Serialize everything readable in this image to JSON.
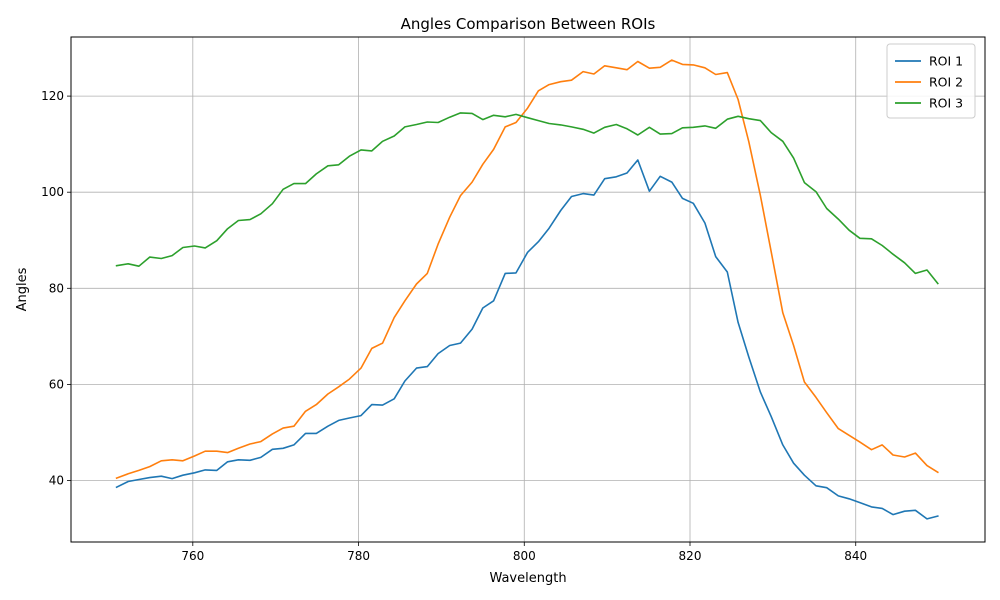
{
  "chart_data": {
    "type": "line",
    "title": "Angles Comparison Between ROIs",
    "xlabel": "Wavelength",
    "ylabel": "Angles",
    "xlim": [
      745.3,
      855.6
    ],
    "ylim": [
      27.2,
      132.3
    ],
    "xticks": [
      760,
      780,
      800,
      820,
      840
    ],
    "yticks": [
      40,
      60,
      80,
      100,
      120
    ],
    "grid": true,
    "legend": "top-right",
    "x": [
      750.8,
      752.2,
      753.5,
      754.8,
      756.2,
      757.5,
      758.8,
      760.2,
      761.5,
      762.9,
      764.2,
      765.5,
      766.9,
      768.2,
      769.6,
      770.9,
      772.2,
      773.6,
      774.9,
      776.3,
      777.6,
      778.9,
      780.3,
      781.6,
      782.9,
      784.3,
      785.6,
      787.0,
      788.3,
      789.6,
      791.0,
      792.3,
      793.7,
      795.0,
      796.3,
      797.7,
      799.0,
      800.4,
      801.7,
      803.0,
      804.4,
      805.7,
      807.1,
      808.4,
      809.7,
      811.1,
      812.4,
      813.7,
      815.1,
      816.4,
      817.8,
      819.1,
      820.4,
      821.8,
      823.1,
      824.5,
      825.8,
      827.1,
      828.5,
      829.8,
      831.2,
      832.5,
      833.8,
      835.2,
      836.5,
      837.9,
      839.2,
      840.5,
      841.9,
      843.2,
      844.5,
      845.9,
      847.2,
      848.6,
      849.9
    ],
    "series": [
      {
        "name": "ROI 1",
        "color": "#1f77b4",
        "values": [
          38.6,
          39.8,
          40.2,
          40.6,
          40.9,
          40.4,
          41.1,
          41.6,
          42.2,
          42.1,
          43.9,
          44.3,
          44.2,
          44.8,
          46.5,
          46.7,
          47.4,
          49.8,
          49.8,
          51.3,
          52.5,
          53.0,
          53.5,
          55.8,
          55.7,
          57.0,
          60.7,
          63.4,
          63.7,
          66.4,
          68.1,
          68.6,
          71.5,
          75.9,
          77.4,
          83.1,
          83.2,
          87.5,
          89.7,
          92.5,
          96.2,
          99.1,
          99.7,
          99.4,
          102.8,
          103.2,
          104.0,
          106.7,
          100.2,
          103.3,
          102.1,
          98.7,
          97.7,
          93.6,
          86.6,
          83.4,
          72.9,
          65.7,
          58.4,
          53.3,
          47.4,
          43.6,
          41.1,
          38.9,
          38.5,
          36.8,
          36.2,
          35.4,
          34.5,
          34.2,
          32.9,
          33.6,
          33.8,
          32.0,
          32.6
        ]
      },
      {
        "name": "ROI 2",
        "color": "#ff7f0e",
        "values": [
          40.5,
          41.4,
          42.1,
          42.9,
          44.1,
          44.3,
          44.1,
          45.1,
          46.1,
          46.1,
          45.8,
          46.7,
          47.6,
          48.1,
          49.7,
          50.9,
          51.3,
          54.4,
          55.8,
          58.0,
          59.5,
          61.1,
          63.4,
          67.5,
          68.6,
          73.9,
          77.4,
          80.9,
          83.1,
          89.2,
          94.8,
          99.3,
          102.1,
          105.8,
          108.9,
          113.6,
          114.5,
          117.5,
          121.1,
          122.4,
          123.0,
          123.3,
          125.1,
          124.6,
          126.3,
          125.9,
          125.5,
          127.2,
          125.8,
          126.0,
          127.5,
          126.6,
          126.5,
          125.9,
          124.5,
          124.9,
          119.3,
          110.5,
          99.3,
          87.6,
          74.9,
          68.1,
          60.5,
          57.3,
          54.1,
          50.8,
          49.4,
          48.0,
          46.4,
          47.4,
          45.3,
          44.9,
          45.7,
          43.1,
          41.7
        ]
      },
      {
        "name": "ROI 3",
        "color": "#2ca02c",
        "values": [
          84.7,
          85.1,
          84.6,
          86.5,
          86.2,
          86.8,
          88.5,
          88.8,
          88.4,
          89.9,
          92.4,
          94.1,
          94.3,
          95.5,
          97.6,
          100.6,
          101.8,
          101.8,
          103.8,
          105.5,
          105.7,
          107.5,
          108.8,
          108.6,
          110.6,
          111.7,
          113.6,
          114.1,
          114.6,
          114.5,
          115.6,
          116.5,
          116.4,
          115.1,
          116.0,
          115.7,
          116.2,
          115.5,
          114.9,
          114.3,
          114.0,
          113.6,
          113.1,
          112.3,
          113.5,
          114.1,
          113.2,
          111.9,
          113.5,
          112.1,
          112.2,
          113.4,
          113.5,
          113.8,
          113.3,
          115.2,
          115.8,
          115.3,
          114.9,
          112.4,
          110.6,
          107.1,
          102.0,
          100.1,
          96.6,
          94.4,
          92.1,
          90.4,
          90.3,
          88.9,
          87.1,
          85.3,
          83.1,
          83.8,
          81.0
        ]
      }
    ]
  }
}
